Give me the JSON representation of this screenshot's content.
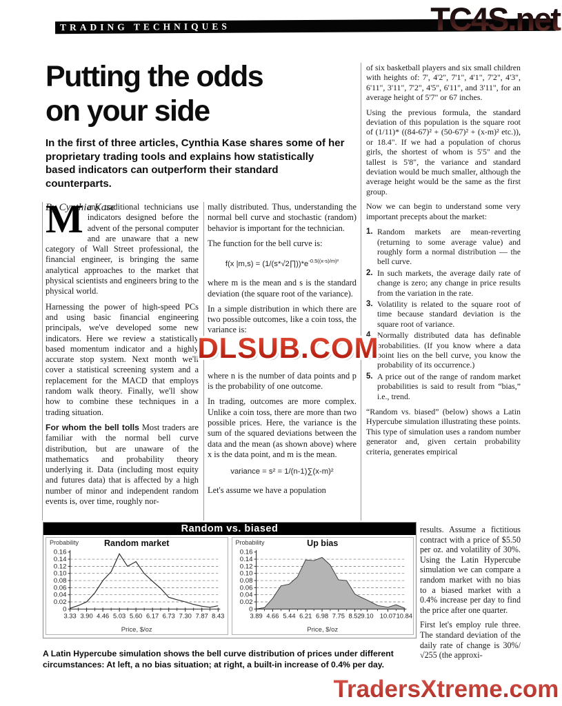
{
  "page": {
    "section": "TRADING TECHNIQUES",
    "watermark_top": "TC4S.net",
    "watermark_center": "DLSUB.COM",
    "watermark_bottom": "TradersXtreme.com"
  },
  "article": {
    "title_line1": "Putting the odds",
    "title_line2": "on your side",
    "standfirst": "In the first of three articles, Cynthia Kase shares some of her proprietary trading tools and explains how statistically based indicators can outperform their standard counterparts.",
    "byline": "By Cynthia Kase"
  },
  "col1": {
    "dropcap": "M",
    "p1": "any traditional technicians use indicators designed before the advent of the personal computer and are unaware that a new category of Wall Street professional, the financial engineer, is bringing the same analytical approaches to the market that physical scientists and engineers bring to the physical world.",
    "p2": "Harnessing the power of high-speed PCs and using basic financial engineering principals, we've developed some new indicators. Here we review a statistically based momentum indicator and a highly accurate stop system. Next month we'll cover a statistical screening system and a replacement for the MACD that employs random walk theory. Finally, we'll show how to combine these techniques in a trading situation.",
    "lead_in": "For whom the bell tolls",
    "p3": "Most traders are familiar with the normal bell curve distribution, but are unaware of the mathematics and probability theory underlying it. Data (including most equity and futures data) that is affected by a high number of minor and independent random events is, over time, roughly nor-"
  },
  "col2": {
    "p1": "mally distributed. Thus, understanding the normal bell curve and stochastic (random) behavior is important for the technician.",
    "p2": "The function for the bell curve is:",
    "formula1_base": "f(x |m,s) = (1/(s*√2∏))*e",
    "formula1_exp": "-0.5((x-s)/m)²",
    "p3": "where m is the mean and s is the standard deviation (the square root of the variance).",
    "p4": "In a simple distribution in which there are two possible outcomes, like a coin toss, the variance is:",
    "p5": "where n is the number of data points and p is the probability of one outcome.",
    "p6": "In trading, outcomes are more complex. Unlike a coin toss, there are more than two possible prices. Here, the variance is the sum of the squared deviations between the data and the mean (as shown above) where x is the data point, and m is the mean.",
    "formula2": "variance = s² = 1/(n-1)∑(x-m)²",
    "p7": "Let's assume we have a population"
  },
  "col3": {
    "p1": "of six basketball players and six small children with heights of: 7', 4'2\", 7'1\", 4'1\", 7'2\", 4'3\", 6'11\", 3'11\", 7'2\", 4'5\", 6'11\", and 3'11\", for an average height of 5'7\" or 67 inches.",
    "p2": "Using the previous formula, the standard deviation of this population is the square root of (1/11)* ((84-67)² + (50-67)² + (x-m)² etc.)), or 18.4\". If we had a population of chorus girls, the shortest of whom is 5'5\" and the tallest is 5'8\", the variance and standard deviation would be much smaller, although the average height would be the same as the first group.",
    "p3": "Now we can begin to understand some very important precepts about the market:",
    "list": [
      {
        "num": "1.",
        "text": "Random markets are mean-reverting (returning to some average value) and roughly form a normal distribution — the bell curve."
      },
      {
        "num": "2.",
        "text": "In such markets, the average daily rate of change is zero; any change in price results from the variation in the rate."
      },
      {
        "num": "3.",
        "text": "Volatility is related to the square root of time because standard deviation is the square root of variance."
      },
      {
        "num": "4.",
        "text": "Normally distributed data has definable probabilities. (If you know where a data point lies on the bell curve, you know the probability of its occurrence.)"
      },
      {
        "num": "5.",
        "text": "A price out of the range of random market probabilities is said to result from “bias,” i.e., trend."
      }
    ],
    "p4": "“Random vs. biased” (below) shows a Latin Hypercube simulation illustrating these points. This type of simulation uses a random number generator and, given certain probability criteria, generates empirical",
    "p5": "results. Assume a fictitious contract with a price of $5.50 per oz. and volatility of 30%. Using the Latin Hypercube simulation we can compare a random market with no bias to a biased market with a 0.4% increase per day to find the price after one quarter.",
    "p6": "First let's employ rule three. The standard deviation of the daily rate of change is 30%/√255 (the approxi-"
  },
  "figure": {
    "title": "Random vs. biased",
    "caption": "A Latin Hypercube simulation shows the bell curve distribution of prices under different circumstances: At left, a no bias situation; at right, a built-in increase of 0.4% per day."
  },
  "chart_data": [
    {
      "type": "line",
      "title": "Random market",
      "ylabel": "Probability",
      "xlabel": "Price, $/oz",
      "xlim": [
        3.33,
        8.43
      ],
      "ylim": [
        0,
        0.16
      ],
      "grid": "dashed-horizontal",
      "x_ticks": [
        3.33,
        3.9,
        4.46,
        5.03,
        5.6,
        6.17,
        6.73,
        7.3,
        7.87,
        8.43
      ],
      "x_tick_labels": [
        "3.33",
        "3.90",
        "4.46",
        "5.03",
        "5.60",
        "6.17",
        "6.73",
        "7.30",
        "7.87",
        "8.43"
      ],
      "y_ticks": [
        0,
        0.02,
        0.04,
        0.06,
        0.08,
        0.1,
        0.12,
        0.14,
        0.16
      ],
      "x": [
        3.33,
        3.62,
        3.9,
        4.18,
        4.46,
        4.75,
        5.03,
        5.31,
        5.6,
        5.88,
        6.17,
        6.45,
        6.73,
        7.02,
        7.3,
        7.58,
        7.87,
        8.15,
        8.43
      ],
      "y": [
        0.002,
        0.01,
        0.02,
        0.045,
        0.08,
        0.105,
        0.155,
        0.12,
        0.133,
        0.1,
        0.078,
        0.058,
        0.033,
        0.026,
        0.02,
        0.013,
        0.008,
        0.005,
        0.009
      ]
    },
    {
      "type": "area",
      "title": "Up bias",
      "ylabel": "Probability",
      "xlabel": "Price, $/oz",
      "xlim": [
        3.89,
        10.84
      ],
      "ylim": [
        0,
        0.16
      ],
      "grid": "dashed-horizontal",
      "x_ticks": [
        3.89,
        4.66,
        5.44,
        6.21,
        6.98,
        7.75,
        8.52,
        9.1,
        10.07,
        10.84
      ],
      "x_tick_labels": [
        "3.89",
        "4.66",
        "5.44",
        "6.21",
        "6.98",
        "7.75",
        "8.52",
        "9.10",
        "10.07",
        "10.84"
      ],
      "y_ticks": [
        0,
        0.02,
        0.04,
        0.06,
        0.08,
        0.1,
        0.12,
        0.14,
        0.16
      ],
      "x": [
        3.89,
        4.28,
        4.66,
        5.05,
        5.44,
        5.82,
        6.21,
        6.6,
        6.98,
        7.36,
        7.75,
        8.13,
        8.52,
        8.81,
        9.1,
        9.59,
        10.07,
        10.45,
        10.84
      ],
      "y": [
        0.0,
        0.004,
        0.03,
        0.065,
        0.07,
        0.09,
        0.138,
        0.136,
        0.145,
        0.124,
        0.082,
        0.08,
        0.042,
        0.033,
        0.025,
        0.01,
        0.005,
        0.012,
        0.003
      ]
    }
  ],
  "colors": {
    "bar": "#000000",
    "headline": "#0d0d0d",
    "watermark_red": "#c22718",
    "area_fill": "#b4b4b4"
  }
}
